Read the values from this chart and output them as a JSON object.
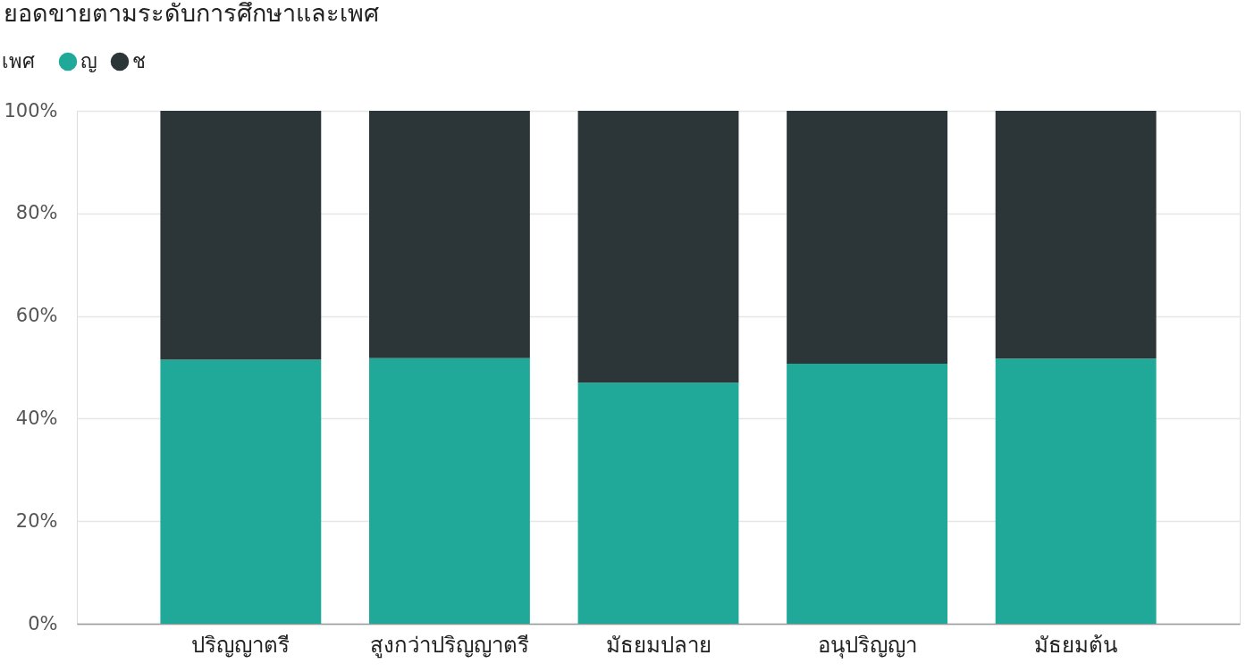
{
  "chart_data": {
    "type": "bar",
    "title": "ยอดขายตามระดับการศึกษาและเพศ",
    "legend_title": "เพศ",
    "categories": [
      "ปริญญาตรี",
      "สูงกว่าปริญญาตรี",
      "มัธยมปลาย",
      "อนุปริญญา",
      "มัธยมต้น"
    ],
    "series": [
      {
        "name": "ญ",
        "color": "#20a999",
        "values": [
          51.5,
          51.8,
          47.0,
          50.7,
          51.7
        ]
      },
      {
        "name": "ช",
        "color": "#2c3639",
        "values": [
          48.5,
          48.2,
          53.0,
          49.3,
          48.3
        ]
      }
    ],
    "stacked": true,
    "ylim": [
      0,
      100
    ],
    "yticks": [
      {
        "value": 0,
        "label": "0%"
      },
      {
        "value": 20,
        "label": "20%"
      },
      {
        "value": 40,
        "label": "40%"
      },
      {
        "value": 60,
        "label": "60%"
      },
      {
        "value": 80,
        "label": "80%"
      },
      {
        "value": 100,
        "label": "100%"
      }
    ],
    "grid": "y",
    "legend": "top left"
  }
}
